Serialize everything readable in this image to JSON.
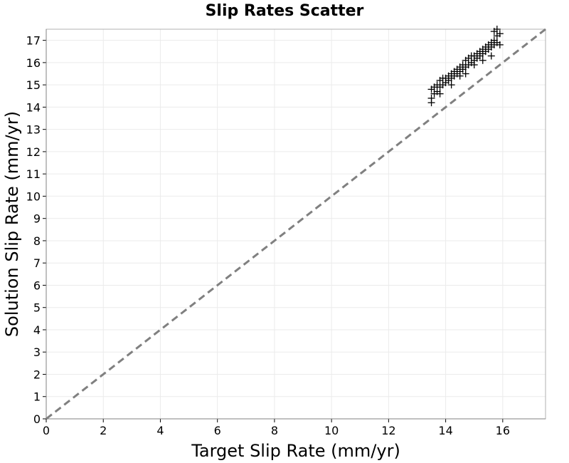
{
  "chart_data": {
    "type": "scatter",
    "title": "Slip Rates Scatter",
    "xlabel": "Target Slip Rate (mm/yr)",
    "ylabel": "Solution Slip Rate (mm/yr)",
    "xlim": [
      0,
      17.5
    ],
    "ylim": [
      0,
      17.5
    ],
    "x_ticks": [
      0,
      2,
      4,
      6,
      8,
      10,
      12,
      14,
      16
    ],
    "y_ticks": [
      0,
      1,
      2,
      3,
      4,
      5,
      6,
      7,
      8,
      9,
      10,
      11,
      12,
      13,
      14,
      15,
      16,
      17
    ],
    "grid": true,
    "marker": "plus",
    "reference_line": {
      "style": "dashed",
      "from": [
        0,
        0
      ],
      "to": [
        17.5,
        17.5
      ],
      "color": "#808080"
    },
    "series": [
      {
        "color": "#000000",
        "points": [
          [
            13.5,
            14.2
          ],
          [
            13.5,
            14.4
          ],
          [
            13.5,
            14.8
          ],
          [
            13.6,
            14.6
          ],
          [
            13.6,
            14.9
          ],
          [
            13.7,
            14.7
          ],
          [
            13.7,
            15.0
          ],
          [
            13.8,
            14.9
          ],
          [
            13.8,
            15.2
          ],
          [
            13.9,
            15.0
          ],
          [
            13.9,
            15.3
          ],
          [
            14.0,
            15.1
          ],
          [
            14.0,
            15.3
          ],
          [
            14.1,
            15.2
          ],
          [
            14.1,
            15.4
          ],
          [
            14.2,
            15.3
          ],
          [
            14.2,
            15.5
          ],
          [
            14.3,
            15.4
          ],
          [
            14.3,
            15.6
          ],
          [
            14.4,
            15.5
          ],
          [
            14.4,
            15.7
          ],
          [
            14.5,
            15.6
          ],
          [
            14.5,
            15.8
          ],
          [
            14.6,
            15.7
          ],
          [
            14.6,
            15.9
          ],
          [
            14.7,
            15.8
          ],
          [
            14.7,
            16.1
          ],
          [
            14.8,
            15.9
          ],
          [
            14.8,
            16.2
          ],
          [
            14.9,
            16.0
          ],
          [
            14.9,
            16.3
          ],
          [
            15.0,
            16.1
          ],
          [
            15.0,
            16.3
          ],
          [
            15.1,
            16.2
          ],
          [
            15.1,
            16.4
          ],
          [
            15.2,
            16.3
          ],
          [
            15.2,
            16.5
          ],
          [
            15.3,
            16.4
          ],
          [
            15.3,
            16.6
          ],
          [
            15.4,
            16.5
          ],
          [
            15.4,
            16.7
          ],
          [
            15.5,
            16.6
          ],
          [
            15.5,
            16.8
          ],
          [
            15.6,
            16.7
          ],
          [
            15.6,
            16.9
          ],
          [
            15.7,
            16.8
          ],
          [
            15.7,
            17.0
          ],
          [
            15.7,
            17.4
          ],
          [
            15.8,
            16.9
          ],
          [
            15.8,
            17.2
          ],
          [
            15.9,
            17.3
          ],
          [
            15.9,
            16.8
          ],
          [
            15.6,
            16.3
          ],
          [
            14.7,
            15.5
          ],
          [
            14.2,
            15.0
          ],
          [
            13.8,
            14.6
          ],
          [
            15.3,
            16.1
          ],
          [
            15.0,
            15.9
          ],
          [
            14.5,
            15.4
          ],
          [
            15.8,
            17.5
          ]
        ]
      }
    ]
  }
}
